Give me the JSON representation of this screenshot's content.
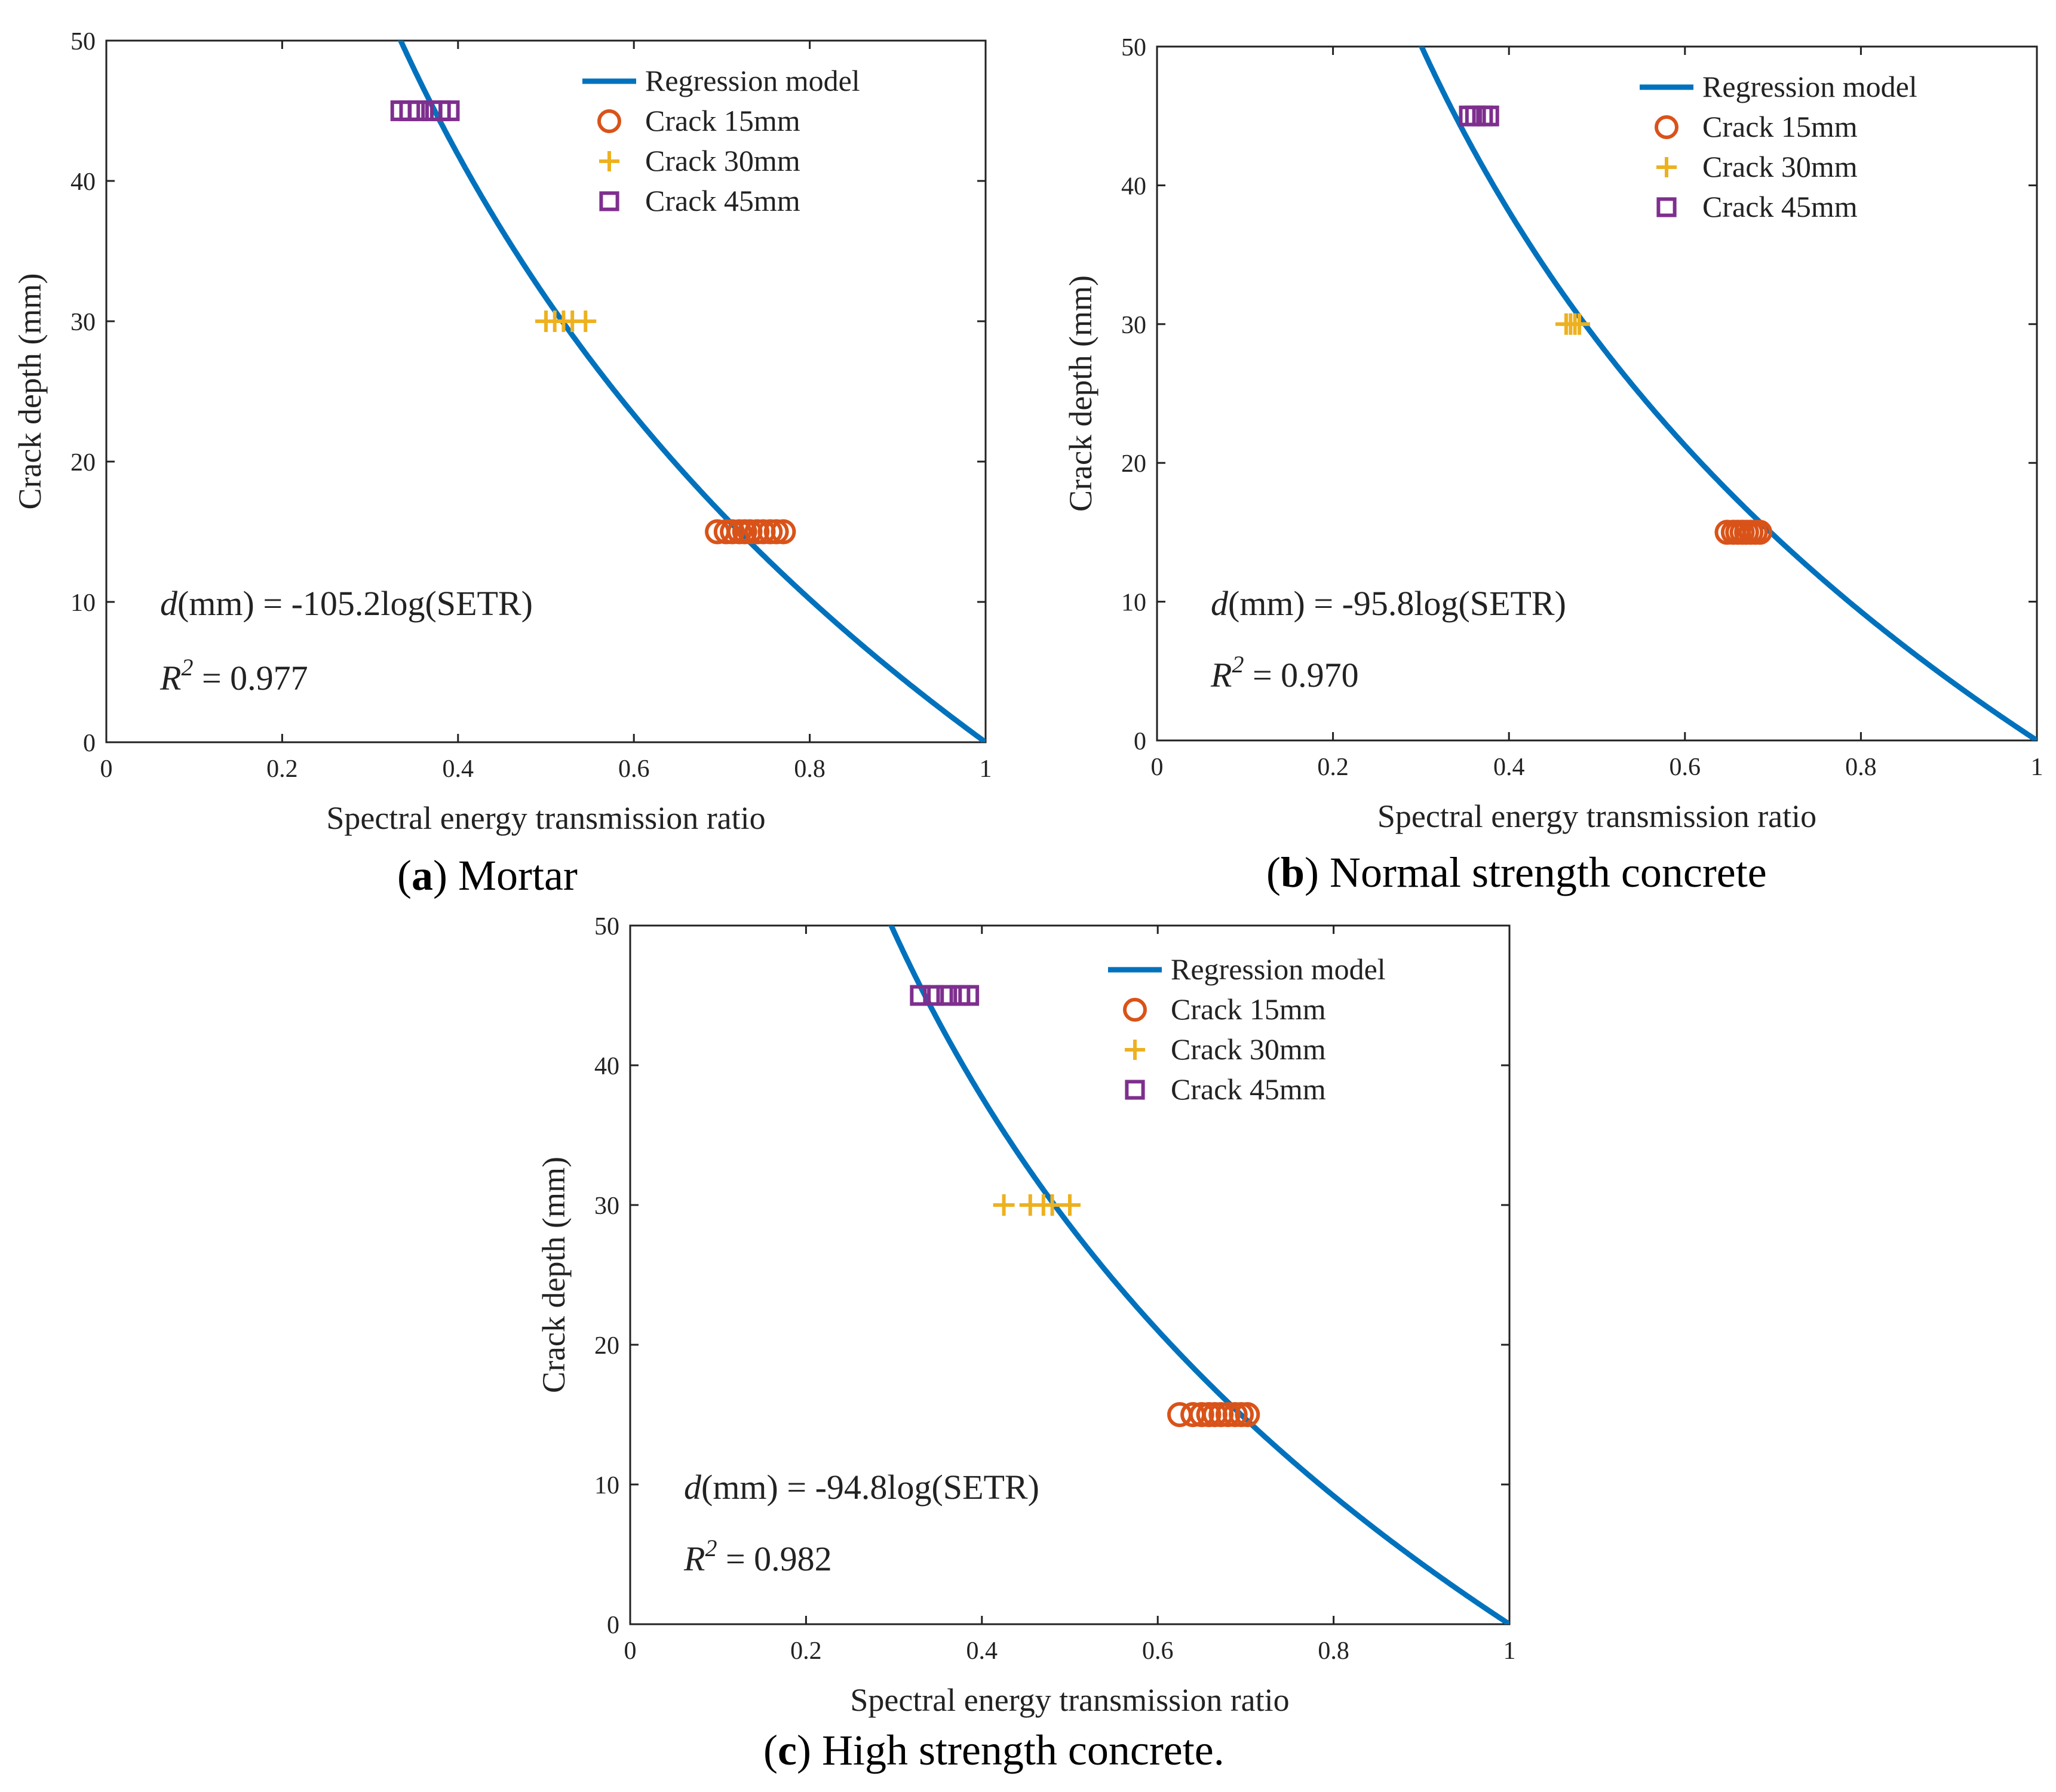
{
  "figure": {
    "captions": [
      {
        "letter": "a",
        "text": " Mortar"
      },
      {
        "letter": "b",
        "text": " Normal strength concrete"
      },
      {
        "letter": "c",
        "text": " High strength concrete."
      }
    ]
  },
  "colors": {
    "curve": "#0072BD",
    "crack15": "#D95319",
    "crack30": "#EDB120",
    "crack45": "#7E2F8E",
    "axis": "#222222"
  },
  "chart_data": [
    {
      "id": "a",
      "type": "scatter",
      "title": "Mortar",
      "xlabel": "Spectral energy transmission ratio",
      "ylabel": "Crack depth (mm)",
      "xlim": [
        0,
        1
      ],
      "ylim": [
        0,
        50
      ],
      "xticks": [
        0,
        0.2,
        0.4,
        0.6,
        0.8,
        1
      ],
      "xtick_labels": [
        "0",
        "0.2",
        "0.4",
        "0.6",
        "0.8",
        "1"
      ],
      "yticks": [
        0,
        10,
        20,
        30,
        40,
        50
      ],
      "ytick_labels": [
        "0",
        "10",
        "20",
        "30",
        "40",
        "50"
      ],
      "model": {
        "name": "Regression model",
        "coef": -105.2,
        "equation_prefix": "(mm) = -105.2log(SETR)",
        "r2_text": " = 0.977"
      },
      "series": [
        {
          "name": "Crack 15mm",
          "marker": "circle",
          "y": 15,
          "x": [
            0.695,
            0.705,
            0.712,
            0.72,
            0.726,
            0.732,
            0.74,
            0.747,
            0.755,
            0.762,
            0.77
          ]
        },
        {
          "name": "Crack 30mm",
          "marker": "plus",
          "y": 30,
          "x": [
            0.5,
            0.51,
            0.52,
            0.53,
            0.545
          ]
        },
        {
          "name": "Crack 45mm",
          "marker": "square",
          "y": 45,
          "x": [
            0.335,
            0.345,
            0.355,
            0.37,
            0.38,
            0.39
          ]
        }
      ]
    },
    {
      "id": "b",
      "type": "scatter",
      "title": "Normal strength concrete",
      "xlabel": "Spectral energy transmission ratio",
      "ylabel": "Crack depth (mm)",
      "xlim": [
        0,
        1
      ],
      "ylim": [
        0,
        50
      ],
      "xticks": [
        0,
        0.2,
        0.4,
        0.6,
        0.8,
        1
      ],
      "xtick_labels": [
        "0",
        "0.2",
        "0.4",
        "0.6",
        "0.8",
        "1"
      ],
      "yticks": [
        0,
        10,
        20,
        30,
        40,
        50
      ],
      "ytick_labels": [
        "0",
        "10",
        "20",
        "30",
        "40",
        "50"
      ],
      "model": {
        "name": "Regression model",
        "coef": -95.8,
        "equation_prefix": "(mm) = -95.8log(SETR)",
        "r2_text": " = 0.970"
      },
      "series": [
        {
          "name": "Crack 15mm",
          "marker": "circle",
          "y": 15,
          "x": [
            0.648,
            0.655,
            0.66,
            0.665,
            0.67,
            0.675,
            0.68,
            0.685
          ]
        },
        {
          "name": "Crack 30mm",
          "marker": "plus",
          "y": 30,
          "x": [
            0.465,
            0.47,
            0.475,
            0.48
          ]
        },
        {
          "name": "Crack 45mm",
          "marker": "square",
          "y": 45,
          "x": [
            0.355,
            0.362,
            0.37,
            0.377
          ]
        }
      ]
    },
    {
      "id": "c",
      "type": "scatter",
      "title": "High strength concrete.",
      "xlabel": "Spectral energy transmission ratio",
      "ylabel": "Crack depth (mm)",
      "xlim": [
        0,
        1
      ],
      "ylim": [
        0,
        50
      ],
      "xticks": [
        0,
        0.2,
        0.4,
        0.6,
        0.8,
        1
      ],
      "xtick_labels": [
        "0",
        "0.2",
        "0.4",
        "0.6",
        "0.8",
        "1"
      ],
      "yticks": [
        0,
        10,
        20,
        30,
        40,
        50
      ],
      "ytick_labels": [
        "0",
        "10",
        "20",
        "30",
        "40",
        "50"
      ],
      "model": {
        "name": "Regression model",
        "coef": -94.8,
        "equation_prefix": "(mm) = -94.8log(SETR)",
        "r2_text": " = 0.982"
      },
      "series": [
        {
          "name": "Crack 15mm",
          "marker": "circle",
          "y": 15,
          "x": [
            0.625,
            0.64,
            0.65,
            0.658,
            0.665,
            0.672,
            0.68,
            0.688,
            0.695,
            0.702
          ]
        },
        {
          "name": "Crack 30mm",
          "marker": "plus",
          "y": 30,
          "x": [
            0.425,
            0.455,
            0.47,
            0.48,
            0.5
          ]
        },
        {
          "name": "Crack 45mm",
          "marker": "square",
          "y": 45,
          "x": [
            0.33,
            0.345,
            0.36,
            0.375,
            0.385
          ]
        }
      ]
    }
  ]
}
